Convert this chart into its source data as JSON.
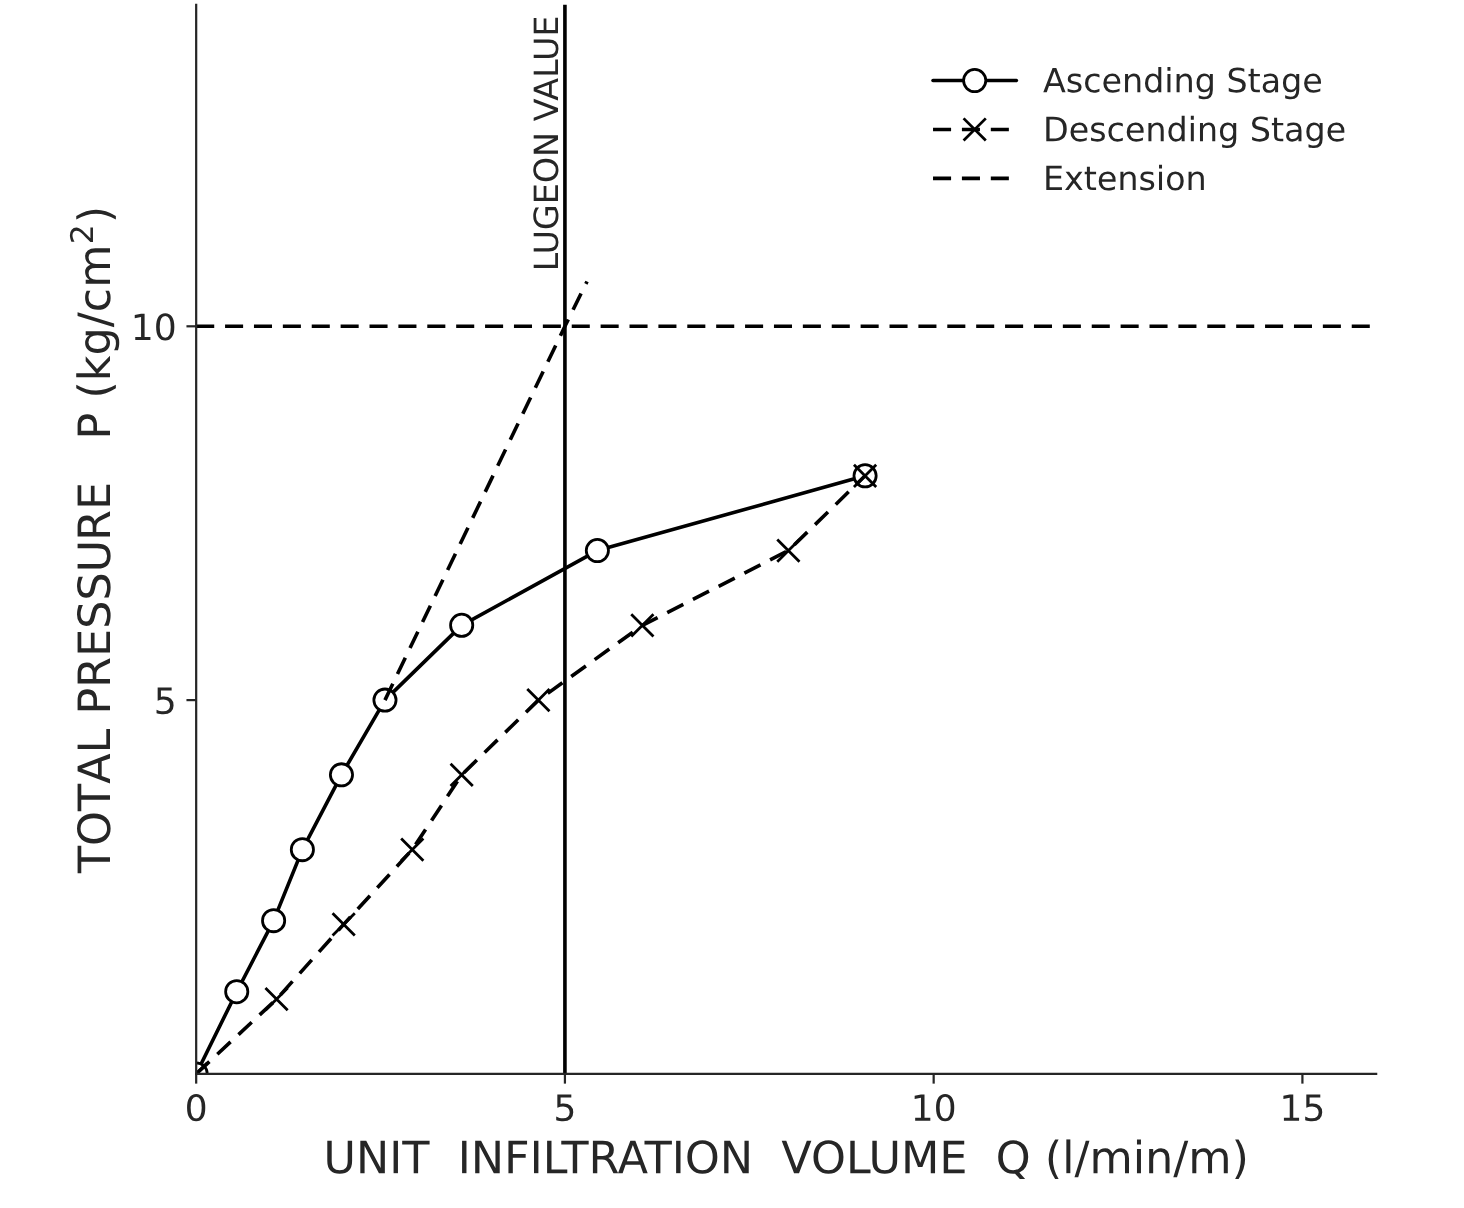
{
  "chart_data": {
    "type": "line",
    "xlabel": "UNIT  INFILTRATION  VOLUME  Q (l/min/m)",
    "ylabel": "TOTAL PRESSURE   P (kg/cm$^{2}$)",
    "xlim": [
      0,
      16
    ],
    "ylim": [
      0,
      14.3
    ],
    "xticks": [
      0,
      5,
      10,
      15
    ],
    "yticks": [
      5,
      10
    ],
    "grid": false,
    "legend": "top right",
    "series": [
      {
        "name": "Ascending Stage",
        "color": "#000000",
        "marker": "circle",
        "line_style": "solid",
        "x": [
          0,
          0.55,
          1.05,
          1.44,
          1.97,
          2.56,
          3.6,
          5.44,
          9.07
        ],
        "values": [
          0,
          1.1,
          2.05,
          3.0,
          4.0,
          5.0,
          6.0,
          7.0,
          8.0
        ]
      },
      {
        "name": "Descending Stage",
        "color": "#000000",
        "marker": "cross",
        "line_style": "dashed",
        "x": [
          0,
          1.09,
          2.0,
          2.93,
          3.6,
          4.64,
          6.05,
          8.03,
          9.07
        ],
        "values": [
          0,
          1.0,
          2.0,
          3.0,
          4.0,
          5.0,
          6.0,
          7.0,
          8.0
        ]
      },
      {
        "name": "Extension",
        "color": "#000000",
        "marker": "none",
        "line_style": "dashed",
        "x": [
          2.56,
          5.0,
          5.3
        ],
        "values": [
          5.0,
          10.0,
          10.6
        ]
      }
    ],
    "ref_lines": [
      {
        "axis": "x",
        "value": 5,
        "label": "LUGEON VALUE",
        "color": "#000000",
        "line_style": "solid"
      },
      {
        "axis": "y",
        "value": 10,
        "color": "#000000",
        "line_style": "dashed"
      }
    ]
  }
}
